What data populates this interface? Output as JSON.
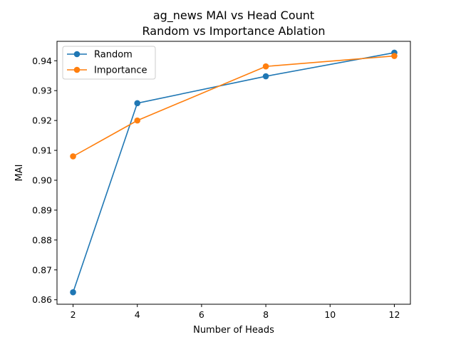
{
  "chart_data": {
    "type": "line",
    "title": "ag_news MAI vs Head Count",
    "subtitle": "Random vs Importance Ablation",
    "xlabel": "Number of Heads",
    "ylabel": "MAI",
    "xlim": [
      1.5,
      12.5
    ],
    "ylim": [
      0.8585,
      0.9465
    ],
    "x_ticks": [
      2,
      4,
      6,
      8,
      10,
      12
    ],
    "y_ticks": [
      0.86,
      0.87,
      0.88,
      0.89,
      0.9,
      0.91,
      0.92,
      0.93,
      0.94
    ],
    "y_tick_labels": [
      "0.86",
      "0.87",
      "0.88",
      "0.89",
      "0.90",
      "0.91",
      "0.92",
      "0.93",
      "0.94"
    ],
    "grid": false,
    "legend_position": "top-left",
    "x": [
      2,
      4,
      8,
      12
    ],
    "series": [
      {
        "name": "Random",
        "color": "#1f77b4",
        "values": [
          0.8625,
          0.9258,
          0.9348,
          0.9427
        ]
      },
      {
        "name": "Importance",
        "color": "#ff7f0e",
        "values": [
          0.908,
          0.92,
          0.9381,
          0.9416
        ]
      }
    ]
  }
}
